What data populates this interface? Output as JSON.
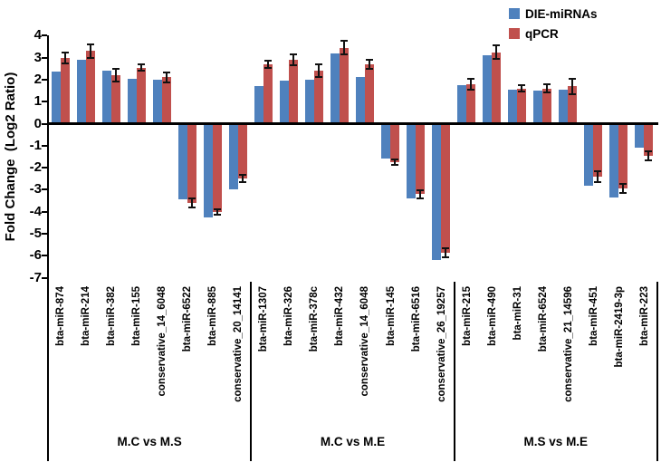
{
  "legend": [
    {
      "label": "DIE-miRNAs",
      "color": "#4F81BD"
    },
    {
      "label": "qPCR",
      "color": "#C0504D"
    }
  ],
  "colors": {
    "die": "#4F81BD",
    "qpcr": "#C0504D",
    "axis": "#000000",
    "error_bar": "#111111"
  },
  "chart_data": {
    "type": "bar",
    "title": "",
    "xlabel": "",
    "ylabel": "Fold Change  (Log2 Ratio)",
    "ylim": [
      -7,
      4
    ],
    "yticks": [
      4,
      3,
      2,
      1,
      0,
      -1,
      -2,
      -3,
      -4,
      -5,
      -6,
      -7
    ],
    "grid": false,
    "legend_position": "top-right",
    "series_names": [
      "DIE-miRNAs",
      "qPCR"
    ],
    "error_bars_on": "qPCR",
    "groups": [
      {
        "label": "M.C vs M.S",
        "items": [
          {
            "name": "bta-miR-874",
            "die": 2.35,
            "qpcr": 3.0,
            "err": 0.25
          },
          {
            "name": "bta-miR-214",
            "die": 2.9,
            "qpcr": 3.3,
            "err": 0.3
          },
          {
            "name": "bta-miR-382",
            "die": 2.4,
            "qpcr": 2.2,
            "err": 0.3
          },
          {
            "name": "bta-miR-155",
            "die": 2.05,
            "qpcr": 2.55,
            "err": 0.13
          },
          {
            "name": "conservative_14_6048",
            "die": 2.0,
            "qpcr": 2.1,
            "err": 0.22
          },
          {
            "name": "bta-miR-6522",
            "die": -3.45,
            "qpcr": -3.6,
            "err": 0.2
          },
          {
            "name": "bta-miR-885",
            "die": -4.25,
            "qpcr": -4.0,
            "err": 0.13
          },
          {
            "name": "conservative_20_14141",
            "die": -3.0,
            "qpcr": -2.5,
            "err": 0.17
          }
        ]
      },
      {
        "label": "M.C vs M.E",
        "items": [
          {
            "name": "bta-miR-1307",
            "die": 1.7,
            "qpcr": 2.7,
            "err": 0.15
          },
          {
            "name": "bta-miR-326",
            "die": 1.95,
            "qpcr": 2.9,
            "err": 0.25
          },
          {
            "name": "bta-miR-378c",
            "die": 2.0,
            "qpcr": 2.4,
            "err": 0.28
          },
          {
            "name": "bta-miR-432",
            "die": 3.2,
            "qpcr": 3.45,
            "err": 0.3
          },
          {
            "name": "conservative_14_6048",
            "die": 2.1,
            "qpcr": 2.7,
            "err": 0.2
          },
          {
            "name": "bta-miR-145",
            "die": -1.6,
            "qpcr": -1.75,
            "err": 0.12
          },
          {
            "name": "bta-miR-6516",
            "die": -3.4,
            "qpcr": -3.2,
            "err": 0.18
          },
          {
            "name": "conservative_26_19257",
            "die": -6.2,
            "qpcr": -5.85,
            "err": 0.2
          }
        ]
      },
      {
        "label": "M.S vs M.E",
        "items": [
          {
            "name": "bta-miR-215",
            "die": 1.75,
            "qpcr": 1.8,
            "err": 0.25
          },
          {
            "name": "bta-miR-490",
            "die": 3.1,
            "qpcr": 3.25,
            "err": 0.3
          },
          {
            "name": "bta-miR-31",
            "die": 1.55,
            "qpcr": 1.6,
            "err": 0.15
          },
          {
            "name": "bta-miR-6524",
            "die": 1.5,
            "qpcr": 1.6,
            "err": 0.2
          },
          {
            "name": "conservative_21_14596",
            "die": 1.55,
            "qpcr": 1.7,
            "err": 0.35
          },
          {
            "name": "bta-miR-451",
            "die": -2.8,
            "qpcr": -2.4,
            "err": 0.25
          },
          {
            "name": "bta-miR-2419-3p",
            "die": -3.35,
            "qpcr": -2.95,
            "err": 0.2
          },
          {
            "name": "bta-miR-223",
            "die": -1.1,
            "qpcr": -1.45,
            "err": 0.2
          }
        ]
      }
    ]
  }
}
